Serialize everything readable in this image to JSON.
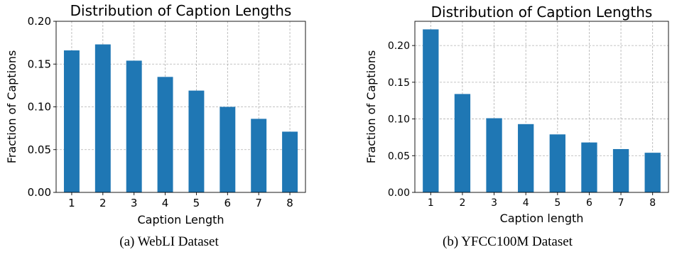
{
  "figures": [
    {
      "caption": "(a) WebLI Dataset"
    },
    {
      "caption": "(b) YFCC100M Dataset"
    }
  ],
  "chart_data": [
    {
      "type": "bar",
      "title": "Distribution of Caption Lengths",
      "xlabel": "Caption Length",
      "ylabel": "Fraction of Captions",
      "categories": [
        "1",
        "2",
        "3",
        "4",
        "5",
        "6",
        "7",
        "8"
      ],
      "values": [
        0.166,
        0.173,
        0.154,
        0.135,
        0.119,
        0.1,
        0.086,
        0.071
      ],
      "ylim": [
        0,
        0.2
      ],
      "yticks": [
        "0.00",
        "0.05",
        "0.10",
        "0.15",
        "0.20"
      ],
      "grid": true,
      "bar_color": "#1f77b4"
    },
    {
      "type": "bar",
      "title": "Distribution of Caption Lengths",
      "xlabel": "Caption length",
      "ylabel": "Fraction of Captions",
      "categories": [
        "1",
        "2",
        "3",
        "4",
        "5",
        "6",
        "7",
        "8"
      ],
      "values": [
        0.222,
        0.134,
        0.101,
        0.093,
        0.079,
        0.068,
        0.059,
        0.054
      ],
      "ylim": [
        0,
        0.233
      ],
      "yticks": [
        "0.00",
        "0.05",
        "0.10",
        "0.15",
        "0.20"
      ],
      "grid": true,
      "bar_color": "#1f77b4"
    }
  ]
}
